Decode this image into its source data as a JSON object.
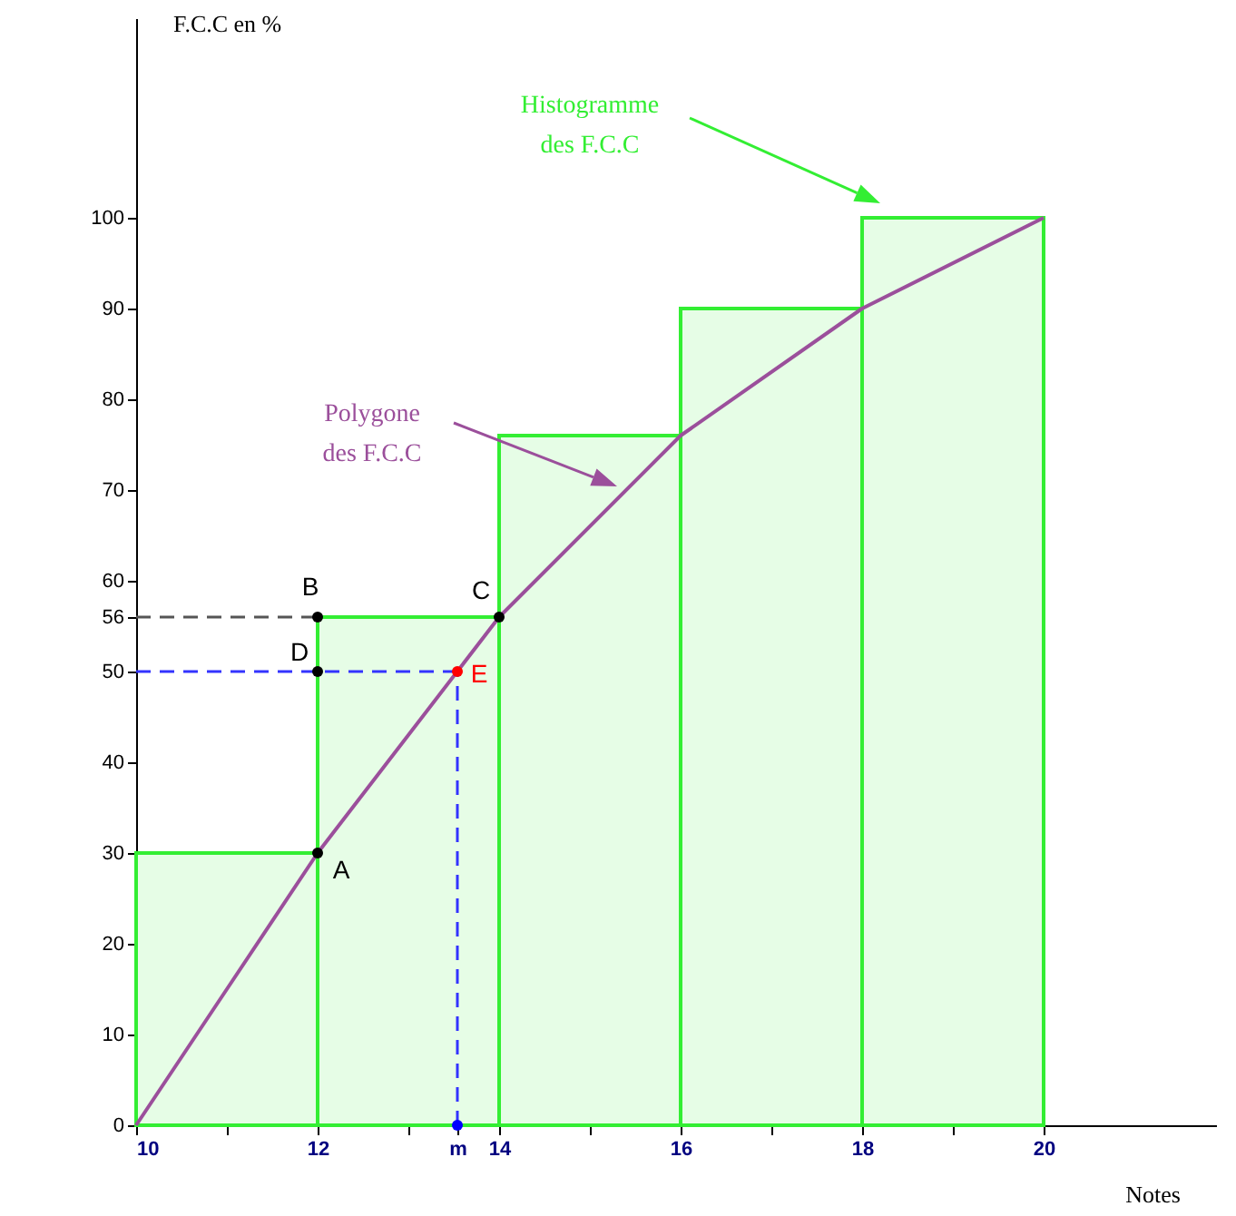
{
  "chart_data": {
    "type": "histogram",
    "xlabel": "Notes",
    "ylabel": "F.C.C en %",
    "bins": [
      10,
      12,
      14,
      16,
      18,
      20
    ],
    "values": [
      30,
      56,
      76,
      90,
      100
    ],
    "color": "#33ee33",
    "series": [
      {
        "type": "line",
        "x": [
          10,
          12,
          14,
          16,
          18,
          20
        ],
        "values": [
          0,
          30,
          56,
          76,
          90,
          100
        ],
        "color": "#9b4f9b"
      },
      {
        "type": "line",
        "x": [
          10,
          12
        ],
        "values": [
          56,
          56
        ],
        "color": "#555555",
        "line_style": "dashed"
      },
      {
        "type": "line",
        "x": [
          10,
          13.54
        ],
        "values": [
          50,
          50
        ],
        "color": "#3333ff",
        "line_style": "dashed"
      },
      {
        "type": "line",
        "x": [
          13.54,
          13.54
        ],
        "values": [
          0,
          50
        ],
        "color": "#3333ff",
        "line_style": "dashed"
      },
      {
        "type": "scatter",
        "x": [
          12,
          12,
          14,
          12,
          13.54,
          13.54
        ],
        "values": [
          30,
          56,
          56,
          50,
          50,
          0
        ],
        "colors": [
          "#000000",
          "#000000",
          "#000000",
          "#000000",
          "#ff0000",
          "#0000ff"
        ]
      }
    ],
    "annotations": [
      {
        "text": "A",
        "x": 12,
        "y": 30
      },
      {
        "text": "B",
        "x": 12,
        "y": 56
      },
      {
        "text": "C",
        "x": 14,
        "y": 56
      },
      {
        "text": "D",
        "x": 12,
        "y": 50
      },
      {
        "text": "E",
        "x": 13.54,
        "y": 50
      },
      "Histogramme\ndes F.C.C",
      "Polygone\ndes F.C.C"
    ],
    "xlim": [
      10,
      21.9
    ],
    "xticks": [
      10,
      {
        "value": 11,
        "label": null
      },
      12,
      {
        "value": 13,
        "label": null
      },
      {
        "value": 13.54,
        "label": "m"
      },
      14,
      {
        "value": 15,
        "label": null
      },
      16,
      {
        "value": 17,
        "label": null
      },
      18,
      {
        "value": 19,
        "label": null
      },
      20
    ],
    "ylim": [
      0,
      122
    ],
    "yticks": [
      0,
      10,
      20,
      30,
      40,
      50,
      56,
      60,
      70,
      80,
      90,
      100
    ],
    "grid": false
  }
}
